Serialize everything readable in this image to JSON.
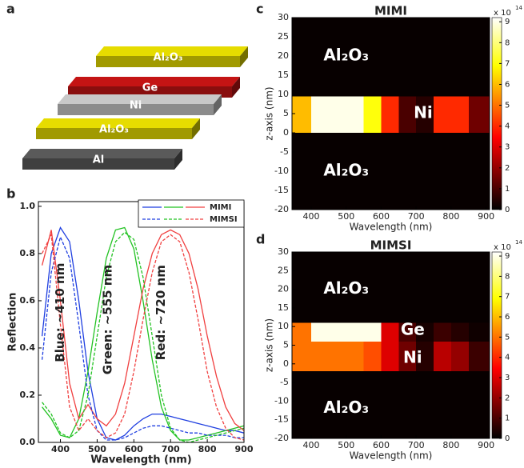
{
  "panel_labels": [
    "a",
    "b",
    "c",
    "d"
  ],
  "stack": {
    "layers": [
      {
        "label": "Al₂O₃",
        "color": "#e6dc00"
      },
      {
        "label": "Ge",
        "color": "#c41414"
      },
      {
        "label": "Ni",
        "color": "#c8c8c8"
      },
      {
        "label": "Al₂O₃",
        "color": "#e6dc00"
      },
      {
        "label": "Al",
        "color": "#5a5a5a"
      }
    ]
  },
  "chart_data": [
    {
      "type": "line",
      "xlabel": "Wavelength (nm)",
      "ylabel": "Reflection",
      "xlim": [
        340,
        900
      ],
      "ylim": [
        0,
        1.02
      ],
      "xticks": [
        400,
        500,
        600,
        700,
        800,
        900
      ],
      "yticks": [
        {
          "value": 0,
          "label": "0.0"
        },
        {
          "value": 0.2,
          "label": "0.2"
        },
        {
          "value": 0.4,
          "label": "0.4"
        },
        {
          "value": 0.6,
          "label": "0.6"
        },
        {
          "value": 0.8,
          "label": "0.8"
        },
        {
          "value": 1,
          "label": "1.0"
        }
      ],
      "annotations": [
        {
          "text": "Blue: ~410 nm",
          "x": 400,
          "y": 0.55
        },
        {
          "text": "Green: ~555 nm",
          "x": 530,
          "y": 0.52
        },
        {
          "text": "Red: ~720 nm",
          "x": 675,
          "y": 0.55
        }
      ],
      "x": [
        350,
        375,
        400,
        425,
        450,
        475,
        500,
        525,
        550,
        575,
        600,
        625,
        650,
        675,
        700,
        725,
        750,
        775,
        800,
        825,
        850,
        875,
        900
      ],
      "series": [
        {
          "name": "MIMI",
          "color": "#1f3fe0",
          "dashed": false,
          "values": [
            0.45,
            0.8,
            0.91,
            0.85,
            0.6,
            0.3,
            0.1,
            0.02,
            0.01,
            0.03,
            0.07,
            0.1,
            0.12,
            0.12,
            0.11,
            0.1,
            0.09,
            0.08,
            0.07,
            0.06,
            0.05,
            0.05,
            0.04
          ]
        },
        {
          "name": "MIMI",
          "color": "#22c222",
          "dashed": false,
          "values": [
            0.15,
            0.1,
            0.03,
            0.02,
            0.1,
            0.3,
            0.55,
            0.78,
            0.9,
            0.91,
            0.82,
            0.6,
            0.35,
            0.15,
            0.05,
            0.01,
            0.01,
            0.02,
            0.03,
            0.04,
            0.05,
            0.06,
            0.07
          ]
        },
        {
          "name": "MIMI",
          "color": "#f04040",
          "dashed": false,
          "values": [
            0.75,
            0.9,
            0.6,
            0.25,
            0.1,
            0.16,
            0.1,
            0.07,
            0.12,
            0.25,
            0.45,
            0.65,
            0.8,
            0.88,
            0.9,
            0.88,
            0.8,
            0.65,
            0.45,
            0.28,
            0.15,
            0.08,
            0.05
          ]
        },
        {
          "name": "MIMSI",
          "color": "#1f3fe0",
          "dashed": true,
          "values": [
            0.35,
            0.72,
            0.87,
            0.78,
            0.5,
            0.2,
            0.05,
            0.01,
            0.01,
            0.02,
            0.04,
            0.06,
            0.07,
            0.07,
            0.06,
            0.05,
            0.04,
            0.04,
            0.03,
            0.03,
            0.03,
            0.02,
            0.02
          ]
        },
        {
          "name": "MIMSI",
          "color": "#22c222",
          "dashed": true,
          "values": [
            0.17,
            0.12,
            0.04,
            0.02,
            0.05,
            0.2,
            0.45,
            0.7,
            0.85,
            0.89,
            0.86,
            0.7,
            0.45,
            0.2,
            0.06,
            0.01,
            0,
            0.01,
            0.02,
            0.03,
            0.04,
            0.05,
            0.06
          ]
        },
        {
          "name": "MIMSI",
          "color": "#f04040",
          "dashed": true,
          "values": [
            0.8,
            0.88,
            0.5,
            0.15,
            0.05,
            0.1,
            0.05,
            0.02,
            0.04,
            0.12,
            0.3,
            0.52,
            0.72,
            0.85,
            0.88,
            0.85,
            0.72,
            0.52,
            0.3,
            0.15,
            0.06,
            0.02,
            0.01
          ]
        }
      ]
    },
    {
      "type": "heatmap",
      "title": "MIMI",
      "xlabel": "Wavelength (nm)",
      "ylabel": "z-axis (nm)",
      "xlim": [
        345,
        910
      ],
      "ylim": [
        -20,
        30
      ],
      "xticks": [
        400,
        500,
        600,
        700,
        800,
        900
      ],
      "yticks": [
        -20,
        -15,
        -10,
        -5,
        0,
        5,
        10,
        15,
        20,
        25,
        30
      ],
      "xbins": [
        345,
        400,
        450,
        500,
        550,
        600,
        650,
        700,
        750,
        800,
        850,
        910
      ],
      "ybins": [
        -20,
        0,
        9.5,
        30
      ],
      "values": [
        [
          0.1,
          0.1,
          0.1,
          0.1,
          0.1,
          0.1,
          0.1,
          0.1,
          0.1,
          0.1,
          0.1
        ],
        [
          6,
          9,
          9,
          9,
          7,
          4,
          1,
          0.5,
          4,
          4,
          1.5
        ],
        [
          0.1,
          0.1,
          0.1,
          0.1,
          0.1,
          0.1,
          0.1,
          0.1,
          0.1,
          0.1,
          0.1
        ]
      ],
      "region_labels": [
        {
          "text": "Al₂O₃",
          "x": 500,
          "y": 20
        },
        {
          "text": "Ni",
          "x": 720,
          "y": 5
        },
        {
          "text": "Al₂O₃",
          "x": 500,
          "y": -10
        }
      ],
      "colorbar_lim": [
        0,
        9.2
      ],
      "colorbar_ticks": [
        0,
        1,
        2,
        3,
        4,
        5,
        6,
        7,
        8,
        9
      ],
      "colorbar_label": "x 10",
      "colorbar_exponent": "14"
    },
    {
      "type": "heatmap",
      "title": "MIMSI",
      "xlabel": "Wavelength (nm)",
      "ylabel": "z-axis (nm)",
      "xlim": [
        345,
        910
      ],
      "ylim": [
        -20,
        30
      ],
      "xticks": [
        400,
        500,
        600,
        700,
        800,
        900
      ],
      "yticks": [
        -20,
        -15,
        -10,
        -5,
        0,
        5,
        10,
        15,
        20,
        25,
        30
      ],
      "xbins": [
        345,
        400,
        450,
        500,
        550,
        600,
        650,
        700,
        750,
        800,
        850,
        910
      ],
      "ybins": [
        -20,
        -2,
        6,
        11,
        30
      ],
      "values": [
        [
          0.1,
          0.1,
          0.1,
          0.1,
          0.1,
          0.1,
          0.1,
          0.1,
          0.1,
          0.1,
          0.1
        ],
        [
          5,
          5,
          5,
          5,
          4.5,
          3,
          1.5,
          0.5,
          2.5,
          2,
          0.8
        ],
        [
          5,
          9,
          9,
          9,
          9,
          3,
          1,
          0.3,
          0.8,
          0.5,
          0.2
        ],
        [
          0.1,
          0.1,
          0.1,
          0.1,
          0.1,
          0.1,
          0.1,
          0.1,
          0.1,
          0.1,
          0.1
        ]
      ],
      "region_labels": [
        {
          "text": "Al₂O₃",
          "x": 500,
          "y": 20
        },
        {
          "text": "Ge",
          "x": 690,
          "y": 9
        },
        {
          "text": "Ni",
          "x": 690,
          "y": 1.5
        },
        {
          "text": "Al₂O₃",
          "x": 500,
          "y": -12
        }
      ],
      "colorbar_lim": [
        0,
        9.2
      ],
      "colorbar_ticks": [
        0,
        1,
        2,
        3,
        4,
        5,
        6,
        7,
        8,
        9
      ],
      "colorbar_label": "x 10",
      "colorbar_exponent": "14"
    }
  ]
}
